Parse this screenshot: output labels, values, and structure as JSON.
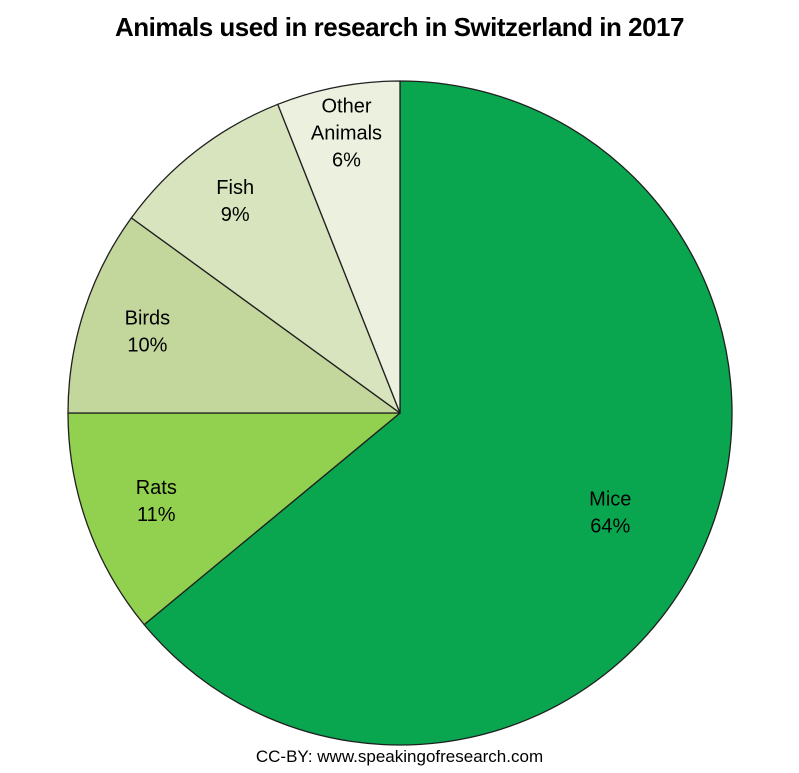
{
  "chart_data": {
    "type": "pie",
    "title": "Animals used in research in Switzerland in 2017",
    "direction": "clockwise",
    "start_angle_deg": 0,
    "legend": "none",
    "labels_inside": true,
    "stroke_color": "#1f1f1f",
    "slices": [
      {
        "label": "Mice",
        "value": 64,
        "color": "#0AA64F"
      },
      {
        "label": "Rats",
        "value": 11,
        "color": "#92D050"
      },
      {
        "label": "Birds",
        "value": 10,
        "color": "#C3D69B"
      },
      {
        "label": "Fish",
        "value": 9,
        "color": "#D7E4BD"
      },
      {
        "label": "Other Animals",
        "value": 6,
        "color": "#EBF1DE"
      }
    ]
  },
  "footer": {
    "credit": "CC-BY: www.speakingofresearch.com"
  }
}
